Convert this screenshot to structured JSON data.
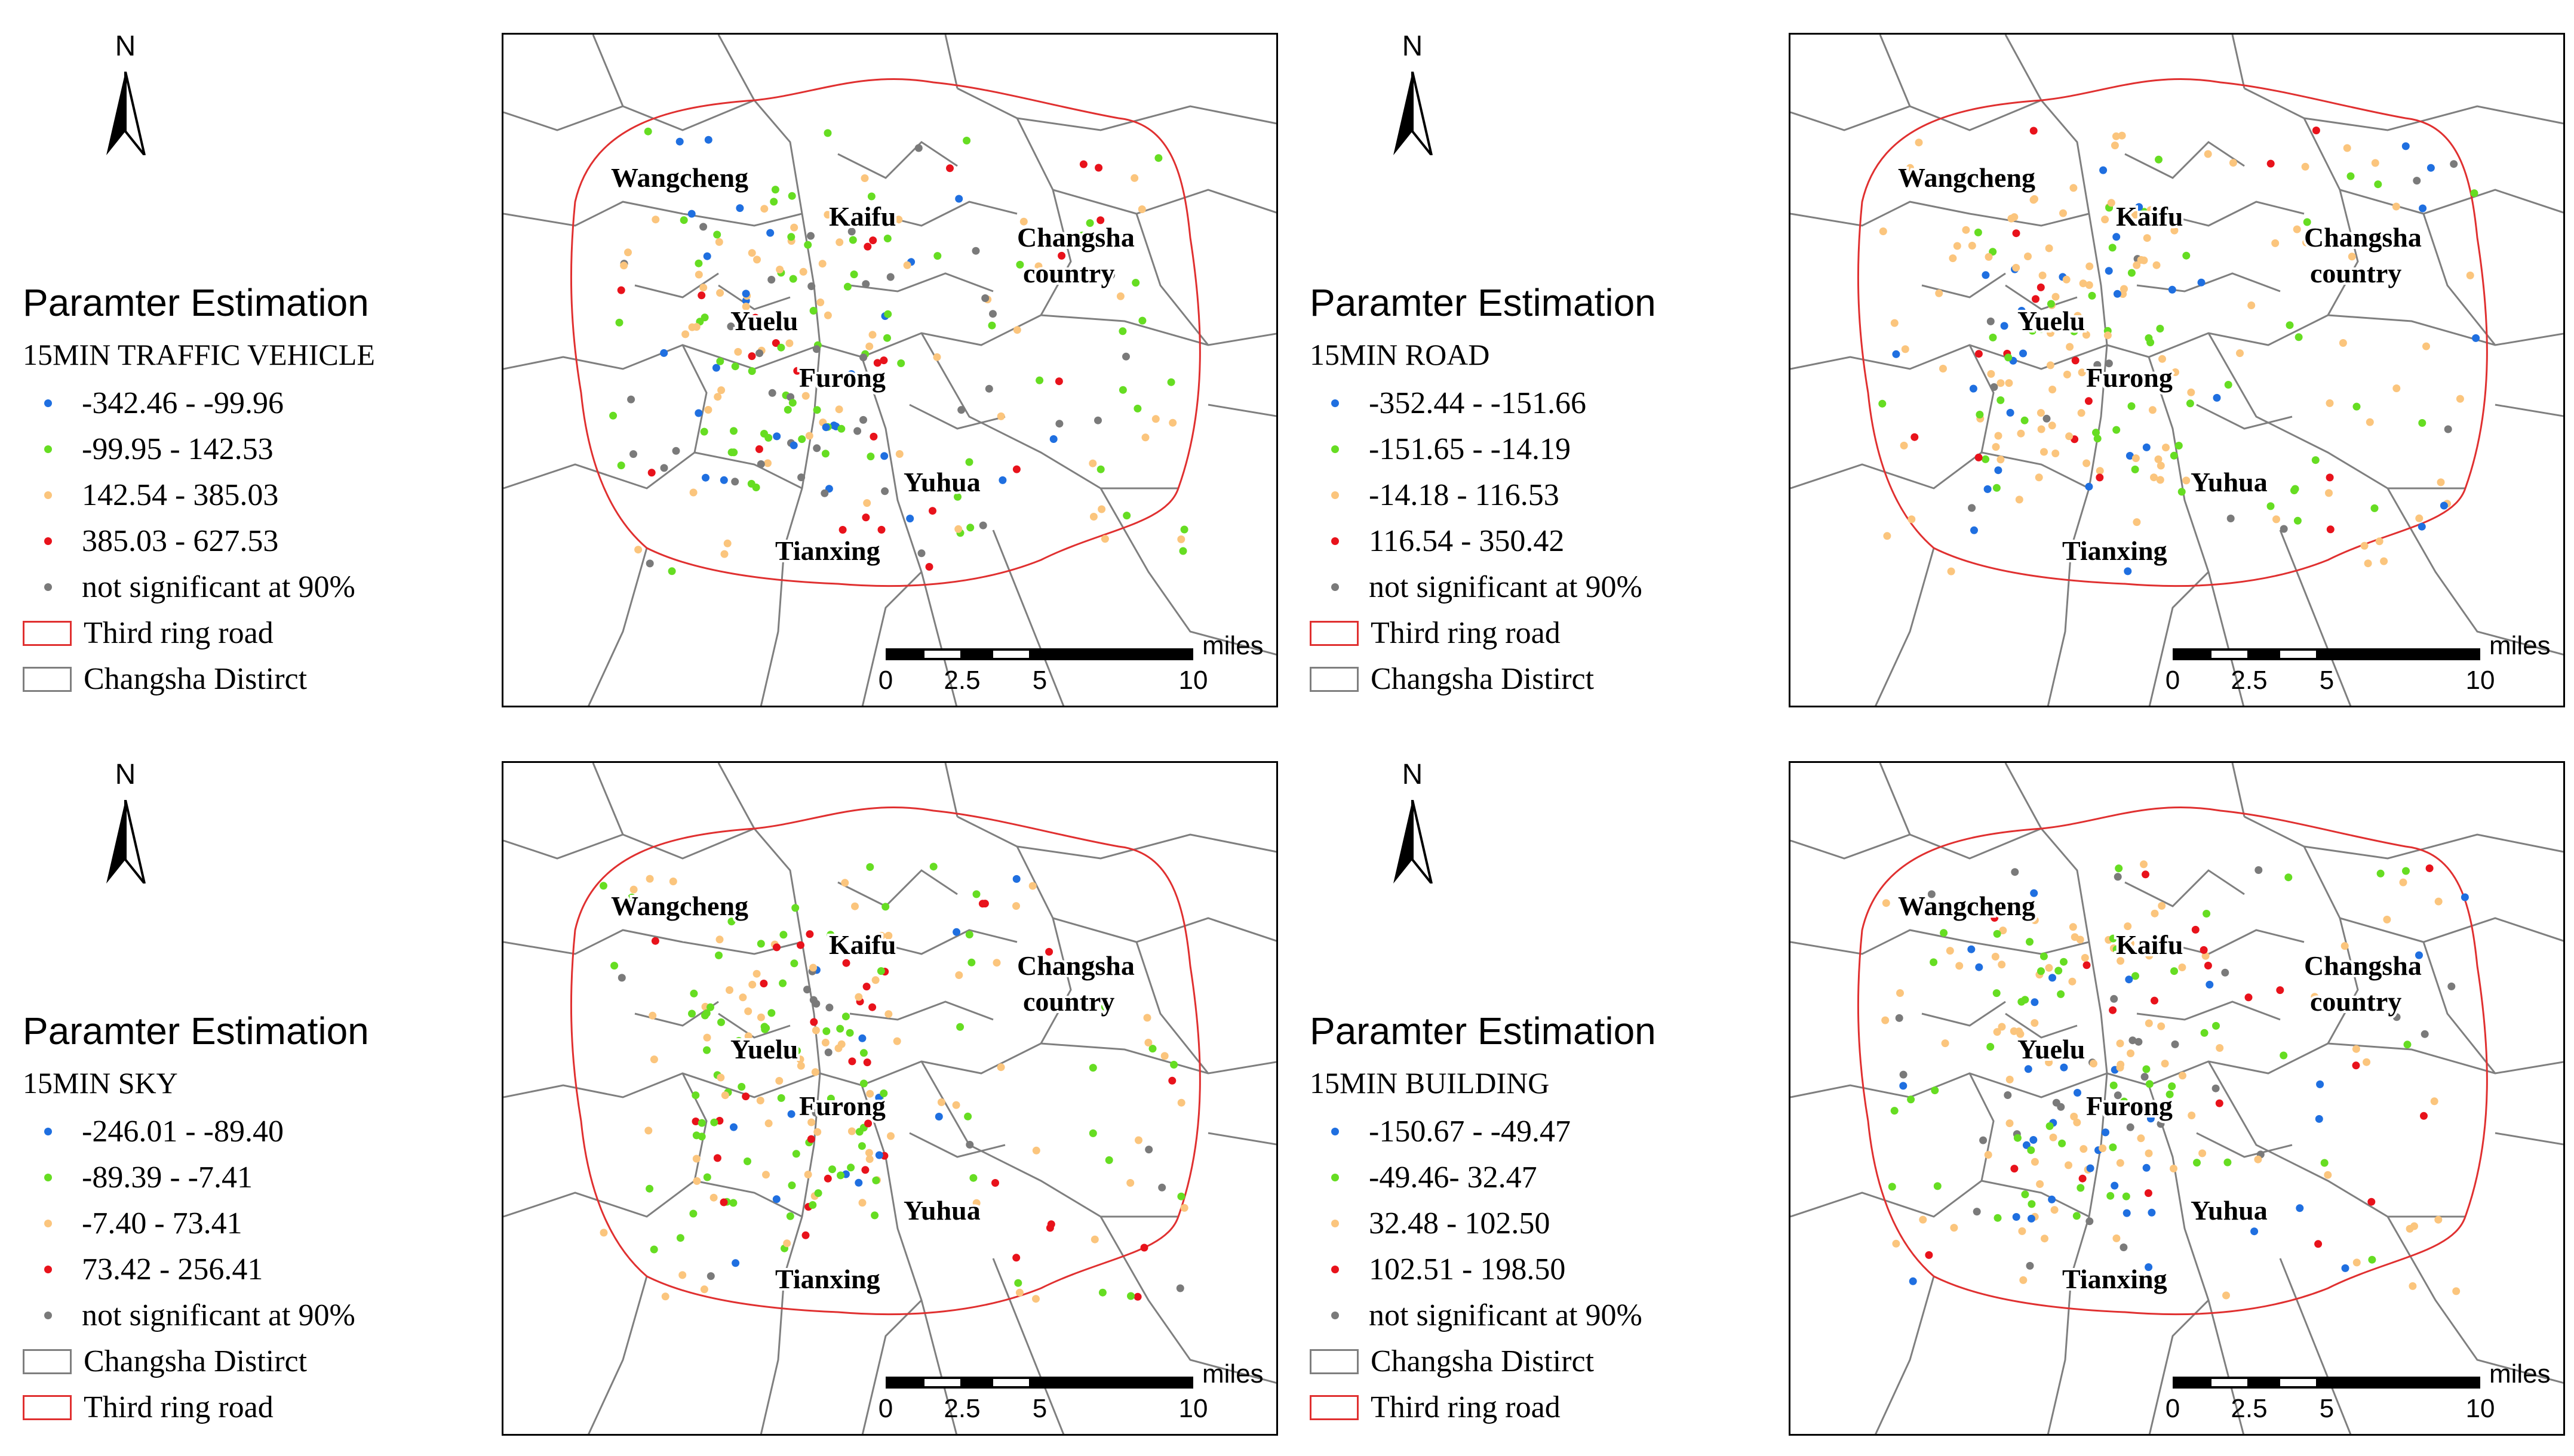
{
  "colors": {
    "class1": "#1f6fe0",
    "class2": "#66dd22",
    "class3": "#fbc57d",
    "class4": "#e8121b",
    "not_significant": "#7a7a7a",
    "ring_road": "#e03030",
    "district_line": "#7f7f7f"
  },
  "panels": [
    {
      "north": "N",
      "legend": {
        "title": "Paramter Estimation",
        "subtitle": "15MIN TRAFFIC VEHICLE",
        "classes": [
          {
            "label": "-342.46 - -99.96",
            "color": "#1f6fe0"
          },
          {
            "label": "-99.95 - 142.53",
            "color": "#66dd22"
          },
          {
            "label": "142.54 - 385.03",
            "color": "#fbc57d"
          },
          {
            "label": "385.03 - 627.53",
            "color": "#e8121b"
          },
          {
            "label": "not significant at 90%",
            "color": "#7a7a7a"
          }
        ],
        "boundaries": [
          {
            "label": "Third ring road",
            "type": "ring"
          },
          {
            "label": "Changsha Distirct",
            "type": "district"
          }
        ]
      },
      "districts": [
        "Wangcheng",
        "Kaifu",
        "Changsha",
        "country",
        "Yuelu",
        "Furong",
        "Yuhua",
        "Tianxing"
      ],
      "scale": {
        "ticks": [
          "0",
          "2.5",
          "5",
          "10"
        ],
        "unit": "miles"
      },
      "seed": 11,
      "weights": [
        0.12,
        0.3,
        0.28,
        0.12,
        0.18
      ]
    },
    {
      "north": "N",
      "legend": {
        "title": "Paramter Estimation",
        "subtitle": "15MIN ROAD",
        "classes": [
          {
            "label": "-352.44 - -151.66",
            "color": "#1f6fe0"
          },
          {
            "label": "-151.65 - -14.19",
            "color": "#66dd22"
          },
          {
            "label": "-14.18 - 116.53",
            "color": "#fbc57d"
          },
          {
            "label": "116.54 - 350.42",
            "color": "#e8121b"
          },
          {
            "label": "not significant at 90%",
            "color": "#7a7a7a"
          }
        ],
        "boundaries": [
          {
            "label": "Third ring road",
            "type": "ring"
          },
          {
            "label": "Changsha Distirct",
            "type": "district"
          }
        ]
      },
      "districts": [
        "Wangcheng",
        "Kaifu",
        "Changsha",
        "country",
        "Yuelu",
        "Furong",
        "Yuhua",
        "Tianxing"
      ],
      "scale": {
        "ticks": [
          "0",
          "2.5",
          "5",
          "10"
        ],
        "unit": "miles"
      },
      "seed": 23,
      "weights": [
        0.08,
        0.25,
        0.52,
        0.08,
        0.07
      ]
    },
    {
      "north": "N",
      "legend": {
        "title": "Paramter Estimation",
        "subtitle": "15MIN SKY",
        "classes": [
          {
            "label": "-246.01 - -89.40",
            "color": "#1f6fe0"
          },
          {
            "label": "-89.39 - -7.41",
            "color": "#66dd22"
          },
          {
            "label": "-7.40 - 73.41",
            "color": "#fbc57d"
          },
          {
            "label": "73.42 - 256.41",
            "color": "#e8121b"
          },
          {
            "label": "not significant at 90%",
            "color": "#7a7a7a"
          }
        ],
        "boundaries": [
          {
            "label": "Changsha Distirct",
            "type": "district"
          },
          {
            "label": "Third ring road",
            "type": "ring"
          }
        ]
      },
      "districts": [
        "Wangcheng",
        "Kaifu",
        "Changsha",
        "country",
        "Yuelu",
        "Furong",
        "Yuhua",
        "Tianxing"
      ],
      "scale": {
        "ticks": [
          "0",
          "2.5",
          "5",
          "10"
        ],
        "unit": "miles"
      },
      "seed": 37,
      "weights": [
        0.06,
        0.45,
        0.3,
        0.1,
        0.09
      ]
    },
    {
      "north": "N",
      "legend": {
        "title": "Paramter Estimation",
        "subtitle": "15MIN BUILDING",
        "classes": [
          {
            "label": "-150.67 - -49.47",
            "color": "#1f6fe0"
          },
          {
            "label": "-49.46- 32.47",
            "color": "#66dd22"
          },
          {
            "label": "32.48 - 102.50",
            "color": "#fbc57d"
          },
          {
            "label": "102.51 - 198.50",
            "color": "#e8121b"
          },
          {
            "label": "not significant at 90%",
            "color": "#7a7a7a"
          }
        ],
        "boundaries": [
          {
            "label": "Changsha Distirct",
            "type": "district"
          },
          {
            "label": "Third ring road",
            "type": "ring"
          }
        ]
      },
      "districts": [
        "Wangcheng",
        "Kaifu",
        "Changsha",
        "country",
        "Yuelu",
        "Furong",
        "Yuhua",
        "Tianxing"
      ],
      "scale": {
        "ticks": [
          "0",
          "2.5",
          "5",
          "10"
        ],
        "unit": "miles"
      },
      "seed": 53,
      "weights": [
        0.14,
        0.2,
        0.42,
        0.12,
        0.12
      ]
    }
  ]
}
